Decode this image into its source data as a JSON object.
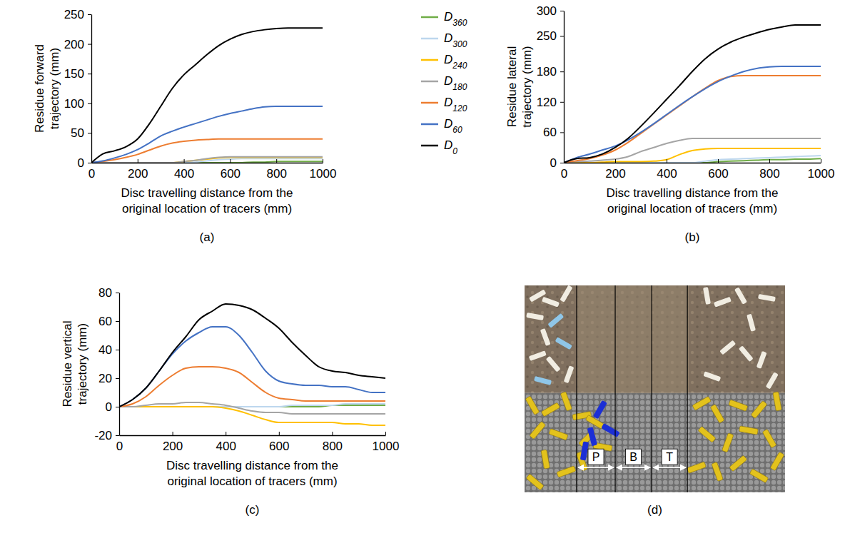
{
  "chart_data": [
    {
      "type": "line",
      "title": "(a)",
      "x_label": "Disc travelling distance from the original location of tracers (mm)",
      "y_label": "Residue forward trajectory (mm)",
      "x": [
        0,
        50,
        100,
        150,
        200,
        250,
        300,
        350,
        400,
        450,
        500,
        550,
        600,
        650,
        700,
        750,
        800,
        850,
        900,
        950,
        1000
      ],
      "xlim": [
        0,
        1000
      ],
      "xticks": [
        0,
        200,
        400,
        600,
        800,
        1000
      ],
      "ylim": [
        0,
        250
      ],
      "yticks": [
        0,
        50,
        100,
        150,
        200,
        250
      ],
      "legend": "right",
      "series": [
        {
          "name": "D360",
          "color": "#70ad47",
          "values": [
            0,
            0,
            0,
            0,
            0,
            0,
            0,
            0,
            0,
            0,
            0,
            0,
            0,
            0,
            1,
            1,
            2,
            2,
            2,
            2,
            2
          ]
        },
        {
          "name": "D300",
          "color": "#bdd7ee",
          "values": [
            0,
            0,
            0,
            0,
            0,
            0,
            0,
            0,
            0,
            1,
            3,
            5,
            6,
            7,
            7,
            7,
            7,
            7,
            7,
            7,
            7
          ]
        },
        {
          "name": "D240",
          "color": "#ffc000",
          "values": [
            0,
            0,
            0,
            0,
            0,
            0,
            0,
            0,
            2,
            4,
            6,
            8,
            9,
            9,
            9,
            9,
            9,
            9,
            9,
            9,
            9
          ]
        },
        {
          "name": "D180",
          "color": "#a5a5a5",
          "values": [
            0,
            0,
            0,
            0,
            0,
            0,
            0,
            0,
            2,
            4,
            7,
            9,
            10,
            10,
            10,
            10,
            10,
            10,
            10,
            10,
            10
          ]
        },
        {
          "name": "D120",
          "color": "#ed7d31",
          "values": [
            0,
            2,
            5,
            9,
            14,
            21,
            28,
            33,
            36,
            38,
            39,
            40,
            40,
            40,
            40,
            40,
            40,
            40,
            40,
            40,
            40
          ]
        },
        {
          "name": "D60",
          "color": "#4472c4",
          "values": [
            0,
            3,
            8,
            14,
            22,
            33,
            45,
            53,
            60,
            66,
            72,
            78,
            83,
            87,
            91,
            94,
            95,
            95,
            95,
            95,
            95
          ]
        },
        {
          "name": "D0",
          "color": "#000000",
          "values": [
            0,
            15,
            20,
            27,
            40,
            65,
            95,
            125,
            148,
            165,
            182,
            197,
            208,
            216,
            221,
            224,
            226,
            227,
            227,
            227,
            227
          ]
        }
      ]
    },
    {
      "type": "line",
      "title": "(b)",
      "x_label": "Disc travelling distance from the original location of tracers (mm)",
      "y_label": "Residue lateral trajectory (mm)",
      "x": [
        0,
        50,
        100,
        150,
        200,
        250,
        300,
        350,
        400,
        450,
        500,
        550,
        600,
        650,
        700,
        750,
        800,
        850,
        900,
        950,
        1000
      ],
      "xlim": [
        0,
        1000
      ],
      "xticks": [
        0,
        200,
        400,
        600,
        800,
        1000
      ],
      "ylim": [
        0,
        300
      ],
      "yticks": [
        0,
        60,
        120,
        180,
        250,
        300
      ],
      "series": [
        {
          "color": "#70ad47",
          "values": [
            0,
            0,
            0,
            0,
            0,
            0,
            0,
            0,
            0,
            0,
            0,
            0,
            2,
            3,
            4,
            5,
            6,
            6,
            7,
            7,
            8
          ]
        },
        {
          "color": "#bdd7ee",
          "values": [
            0,
            0,
            0,
            0,
            0,
            0,
            0,
            0,
            0,
            0,
            0,
            3,
            6,
            7,
            8,
            9,
            10,
            11,
            12,
            13,
            14
          ]
        },
        {
          "color": "#ffc000",
          "values": [
            0,
            0,
            0,
            1,
            2,
            2,
            2,
            3,
            6,
            16,
            24,
            27,
            28,
            28,
            28,
            28,
            28,
            28,
            28,
            28,
            28
          ]
        },
        {
          "color": "#a5a5a5",
          "values": [
            0,
            2,
            3,
            5,
            7,
            12,
            22,
            30,
            38,
            44,
            48,
            48,
            48,
            48,
            48,
            48,
            48,
            48,
            48,
            48,
            48
          ]
        },
        {
          "color": "#ed7d31",
          "values": [
            0,
            4,
            8,
            15,
            25,
            40,
            58,
            76,
            94,
            112,
            130,
            147,
            162,
            170,
            172,
            172,
            172,
            172,
            172,
            172,
            172
          ]
        },
        {
          "color": "#4472c4",
          "values": [
            0,
            10,
            17,
            25,
            33,
            45,
            60,
            77,
            95,
            113,
            130,
            146,
            160,
            171,
            180,
            186,
            189,
            190,
            190,
            190,
            190
          ]
        },
        {
          "color": "#000000",
          "values": [
            0,
            8,
            10,
            17,
            30,
            48,
            72,
            98,
            125,
            152,
            180,
            205,
            224,
            238,
            248,
            256,
            263,
            268,
            272,
            272,
            272
          ]
        }
      ]
    },
    {
      "type": "line",
      "title": "(c)",
      "x_label": "Disc travelling distance from the original location of tracers (mm)",
      "y_label": "Residue vertical trajectory (mm)",
      "x": [
        0,
        50,
        100,
        150,
        200,
        250,
        300,
        350,
        400,
        450,
        500,
        550,
        600,
        650,
        700,
        750,
        800,
        850,
        900,
        950,
        1000
      ],
      "xlim": [
        0,
        1000
      ],
      "xticks": [
        0,
        200,
        400,
        600,
        800,
        1000
      ],
      "ylim": [
        -20,
        80
      ],
      "yticks": [
        -20,
        0,
        20,
        40,
        60,
        80
      ],
      "series": [
        {
          "color": "#70ad47",
          "values": [
            0,
            0,
            0,
            0,
            0,
            0,
            0,
            0,
            0,
            0,
            0,
            0,
            0,
            0,
            0,
            0,
            1,
            1,
            1,
            1,
            1
          ]
        },
        {
          "color": "#bdd7ee",
          "values": [
            0,
            0,
            0,
            0,
            0,
            0,
            0,
            0,
            0,
            0,
            0,
            0,
            0,
            1,
            1,
            1,
            1,
            2,
            2,
            2,
            2
          ]
        },
        {
          "color": "#ffc000",
          "values": [
            0,
            0,
            0,
            0,
            0,
            0,
            0,
            0,
            -1,
            -3,
            -6,
            -9,
            -11,
            -11,
            -11,
            -11,
            -11,
            -12,
            -12,
            -13,
            -13
          ]
        },
        {
          "color": "#a5a5a5",
          "values": [
            0,
            0,
            1,
            2,
            2,
            3,
            3,
            2,
            1,
            -1,
            -3,
            -4,
            -4,
            -5,
            -5,
            -5,
            -5,
            -5,
            -5,
            -5,
            -5
          ]
        },
        {
          "color": "#ed7d31",
          "values": [
            0,
            2,
            7,
            15,
            22,
            27,
            28,
            28,
            27,
            24,
            17,
            10,
            6,
            5,
            4,
            4,
            4,
            4,
            4,
            4,
            4
          ]
        },
        {
          "color": "#4472c4",
          "values": [
            0,
            5,
            13,
            25,
            37,
            46,
            52,
            56,
            56,
            50,
            38,
            25,
            18,
            16,
            15,
            15,
            14,
            14,
            12,
            10,
            10
          ]
        },
        {
          "color": "#000000",
          "values": [
            0,
            5,
            13,
            25,
            38,
            49,
            61,
            67,
            72,
            71,
            68,
            62,
            55,
            45,
            36,
            28,
            25,
            24,
            22,
            21,
            20
          ]
        }
      ]
    }
  ],
  "image_panel": {
    "title": "(d)",
    "zones": [
      "P",
      "B",
      "T"
    ]
  }
}
